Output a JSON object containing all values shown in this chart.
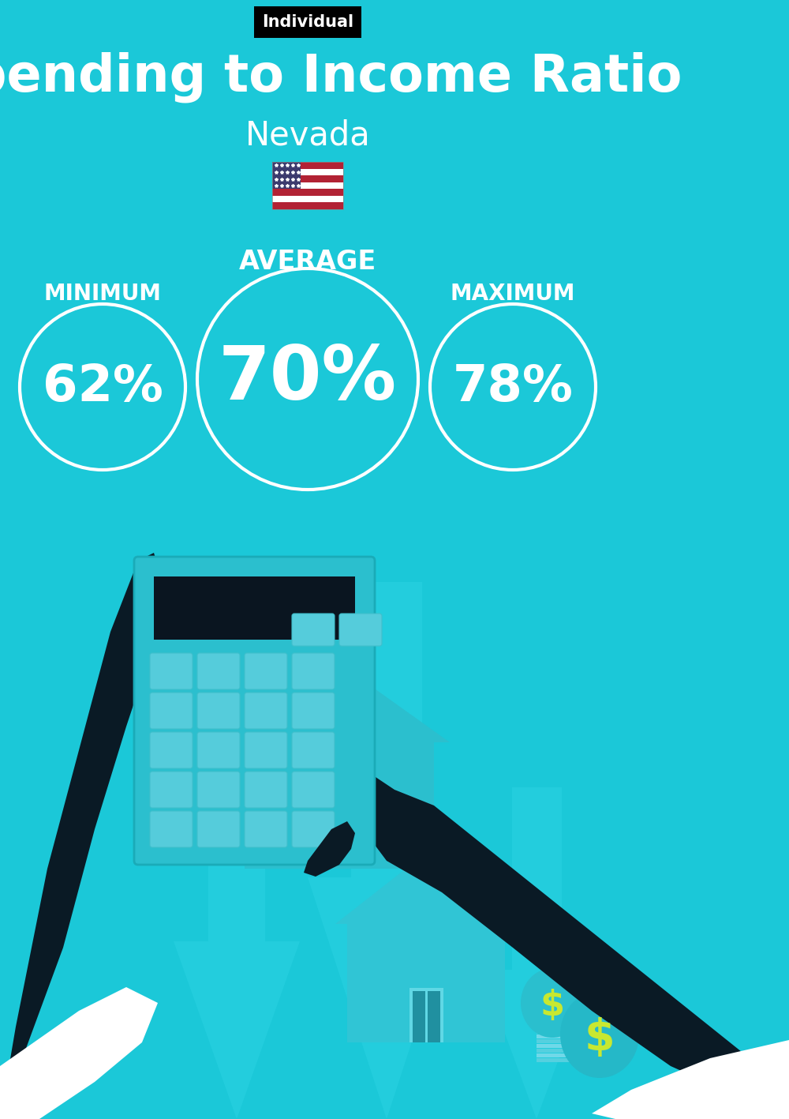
{
  "bg_color": "#1BC8D8",
  "tag_text": "Individual",
  "tag_bg": "#000000",
  "tag_text_color": "#ffffff",
  "title": "Spending to Income Ratio",
  "subtitle": "Nevada",
  "title_color": "#ffffff",
  "subtitle_color": "#ffffff",
  "avg_label": "AVERAGE",
  "min_label": "MINIMUM",
  "max_label": "MAXIMUM",
  "avg_value": "70%",
  "min_value": "62%",
  "max_value": "78%",
  "circle_color": "#ffffff",
  "value_color": "#ffffff",
  "label_color": "#ffffff",
  "arrow_color": "#2DD4E4",
  "house_color": "#2BBFCE",
  "house_light": "#72DCE8",
  "dark_color": "#0A1A25",
  "calc_color": "#2BBFCE",
  "money_bag_color": "#2ABFCE"
}
